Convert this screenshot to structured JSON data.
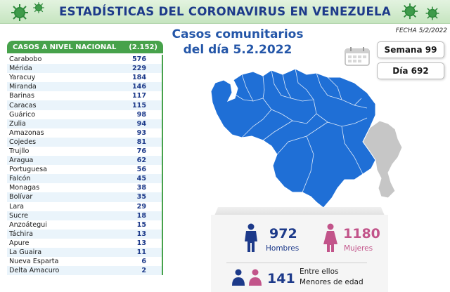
{
  "header": {
    "title": "ESTADÍSTICAS DEL CORONAVIRUS EN VENEZUELA"
  },
  "main_title": {
    "line1": "Casos comunitarios",
    "line2": "del día 5.2.2022"
  },
  "info": {
    "fecha": "FECHA 5/2/2022",
    "semana": "Semana 99",
    "dia": "Día 692"
  },
  "table": {
    "header_label": "CASOS A NIVEL NACIONAL",
    "header_total": "(2.152)",
    "rows": [
      {
        "state": "Carabobo",
        "cases": "576"
      },
      {
        "state": "Mérida",
        "cases": "229"
      },
      {
        "state": "Yaracuy",
        "cases": "184"
      },
      {
        "state": "Miranda",
        "cases": "146"
      },
      {
        "state": "Barinas",
        "cases": "117"
      },
      {
        "state": "Caracas",
        "cases": "115"
      },
      {
        "state": "Guárico",
        "cases": "98"
      },
      {
        "state": "Zulia",
        "cases": "94"
      },
      {
        "state": "Amazonas",
        "cases": "93"
      },
      {
        "state": "Cojedes",
        "cases": "81"
      },
      {
        "state": "Trujllo",
        "cases": "76"
      },
      {
        "state": "Aragua",
        "cases": "62"
      },
      {
        "state": "Portuguesa",
        "cases": "56"
      },
      {
        "state": "Falcón",
        "cases": "45"
      },
      {
        "state": "Monagas",
        "cases": "38"
      },
      {
        "state": "Bolívar",
        "cases": "35"
      },
      {
        "state": "Lara",
        "cases": "29"
      },
      {
        "state": "Sucre",
        "cases": "18"
      },
      {
        "state": "Anzoátegui",
        "cases": "15"
      },
      {
        "state": "Táchira",
        "cases": "13"
      },
      {
        "state": "Apure",
        "cases": "13"
      },
      {
        "state": "La Guaira",
        "cases": "11"
      },
      {
        "state": "Nueva Esparta",
        "cases": "6"
      },
      {
        "state": "Delta Amacuro",
        "cases": "2"
      }
    ]
  },
  "stats": {
    "hombres_count": "972",
    "hombres_label": "Hombres",
    "mujeres_count": "1180",
    "mujeres_label": "Mujeres",
    "menores_count": "141",
    "menores_line1": "Entre ellos",
    "menores_line2": "Menores de edad"
  },
  "colors": {
    "banner_bg": "#c6e5c0",
    "title_blue": "#1d3a8a",
    "table_green": "#47a24b",
    "map_blue": "#1f6fd6",
    "map_gray": "#c6c6c6",
    "pink": "#c2548a"
  },
  "icons": {
    "banner_decoration": "virus-icon",
    "calendar": "calendar-icon",
    "male": "male-person-icon",
    "female": "female-person-icon",
    "children": "children-icon"
  }
}
